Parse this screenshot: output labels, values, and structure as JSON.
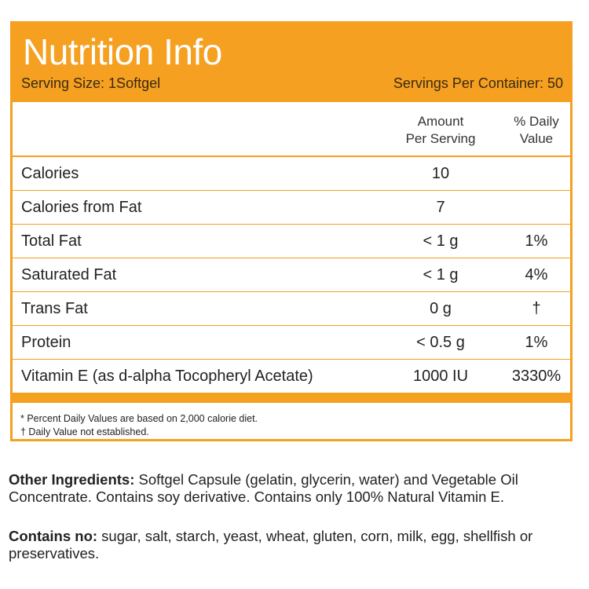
{
  "label": {
    "title": "Nutrition Info",
    "serving_size": "Serving Size: 1Softgel",
    "servings_per_container": "Servings Per Container: 50",
    "col_amount_line1": "Amount",
    "col_amount_line2": "Per Serving",
    "col_dv_line1": "% Daily",
    "col_dv_line2": "Value",
    "rows": [
      {
        "name": "Calories",
        "amount": "10",
        "dv": ""
      },
      {
        "name": "Calories from Fat",
        "amount": "7",
        "dv": ""
      },
      {
        "name": "Total Fat",
        "amount": "< 1 g",
        "dv": "1%"
      },
      {
        "name": "Saturated Fat",
        "amount": "< 1 g",
        "dv": "4%"
      },
      {
        "name": "Trans Fat",
        "amount": "0 g",
        "dv": "†"
      },
      {
        "name": "Protein",
        "amount": "< 0.5 g",
        "dv": "1%"
      },
      {
        "name": "Vitamin E (as d-alpha Tocopheryl Acetate)",
        "amount": "1000 IU",
        "dv": "3330%"
      }
    ],
    "footnote_1": "* Percent Daily Values are based on 2,000 calorie diet.",
    "footnote_2": "† Daily Value not established."
  },
  "ingredients": {
    "label": "Other Ingredients:",
    "text": " Softgel Capsule (gelatin, glycerin, water) and Vegetable Oil Concentrate.  Contains soy derivative. Contains only 100% Natural Vitamin E."
  },
  "contains": {
    "label": "Contains no:",
    "text": "  sugar, salt, starch, yeast, wheat, gluten, corn, milk, egg, shellfish or preservatives."
  },
  "colors": {
    "accent": "#f5a020",
    "title_text": "#ffffff"
  }
}
